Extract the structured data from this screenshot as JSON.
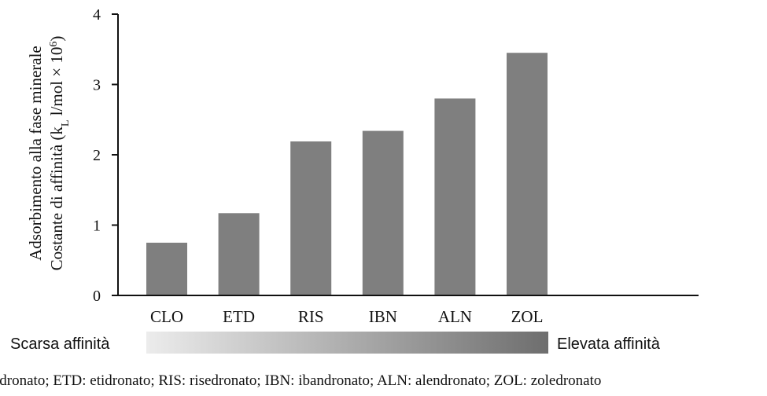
{
  "chart_data": {
    "type": "bar",
    "categories": [
      "CLO",
      "ETD",
      "RIS",
      "IBN",
      "ALN",
      "ZOL"
    ],
    "values": [
      0.75,
      1.17,
      2.19,
      2.34,
      2.8,
      3.45
    ],
    "ylim": [
      0,
      4
    ],
    "yticks": [
      "0",
      "1",
      "2",
      "3",
      "4"
    ],
    "ylabel_line1": "Adsorbimento alla fase minerale",
    "ylabel_line2_prefix": "Costante di affinità (k",
    "ylabel_line2_sub": "L",
    "ylabel_line2_mid": " l/mol × 10",
    "ylabel_line2_sup": "6",
    "ylabel_line2_suffix": ")",
    "grid": false,
    "bar_color": "#7f7f7f",
    "affinity_scale": {
      "left_label": "Scarsa affinità",
      "right_label": "Elevata affinità",
      "gradient_start": "#ececec",
      "gradient_end": "#6e6e6e"
    },
    "caption": "ldronato; ETD: etidronato; RIS: risedronato; IBN: ibandronato; ALN: alendronato; ZOL: zoledronato"
  }
}
